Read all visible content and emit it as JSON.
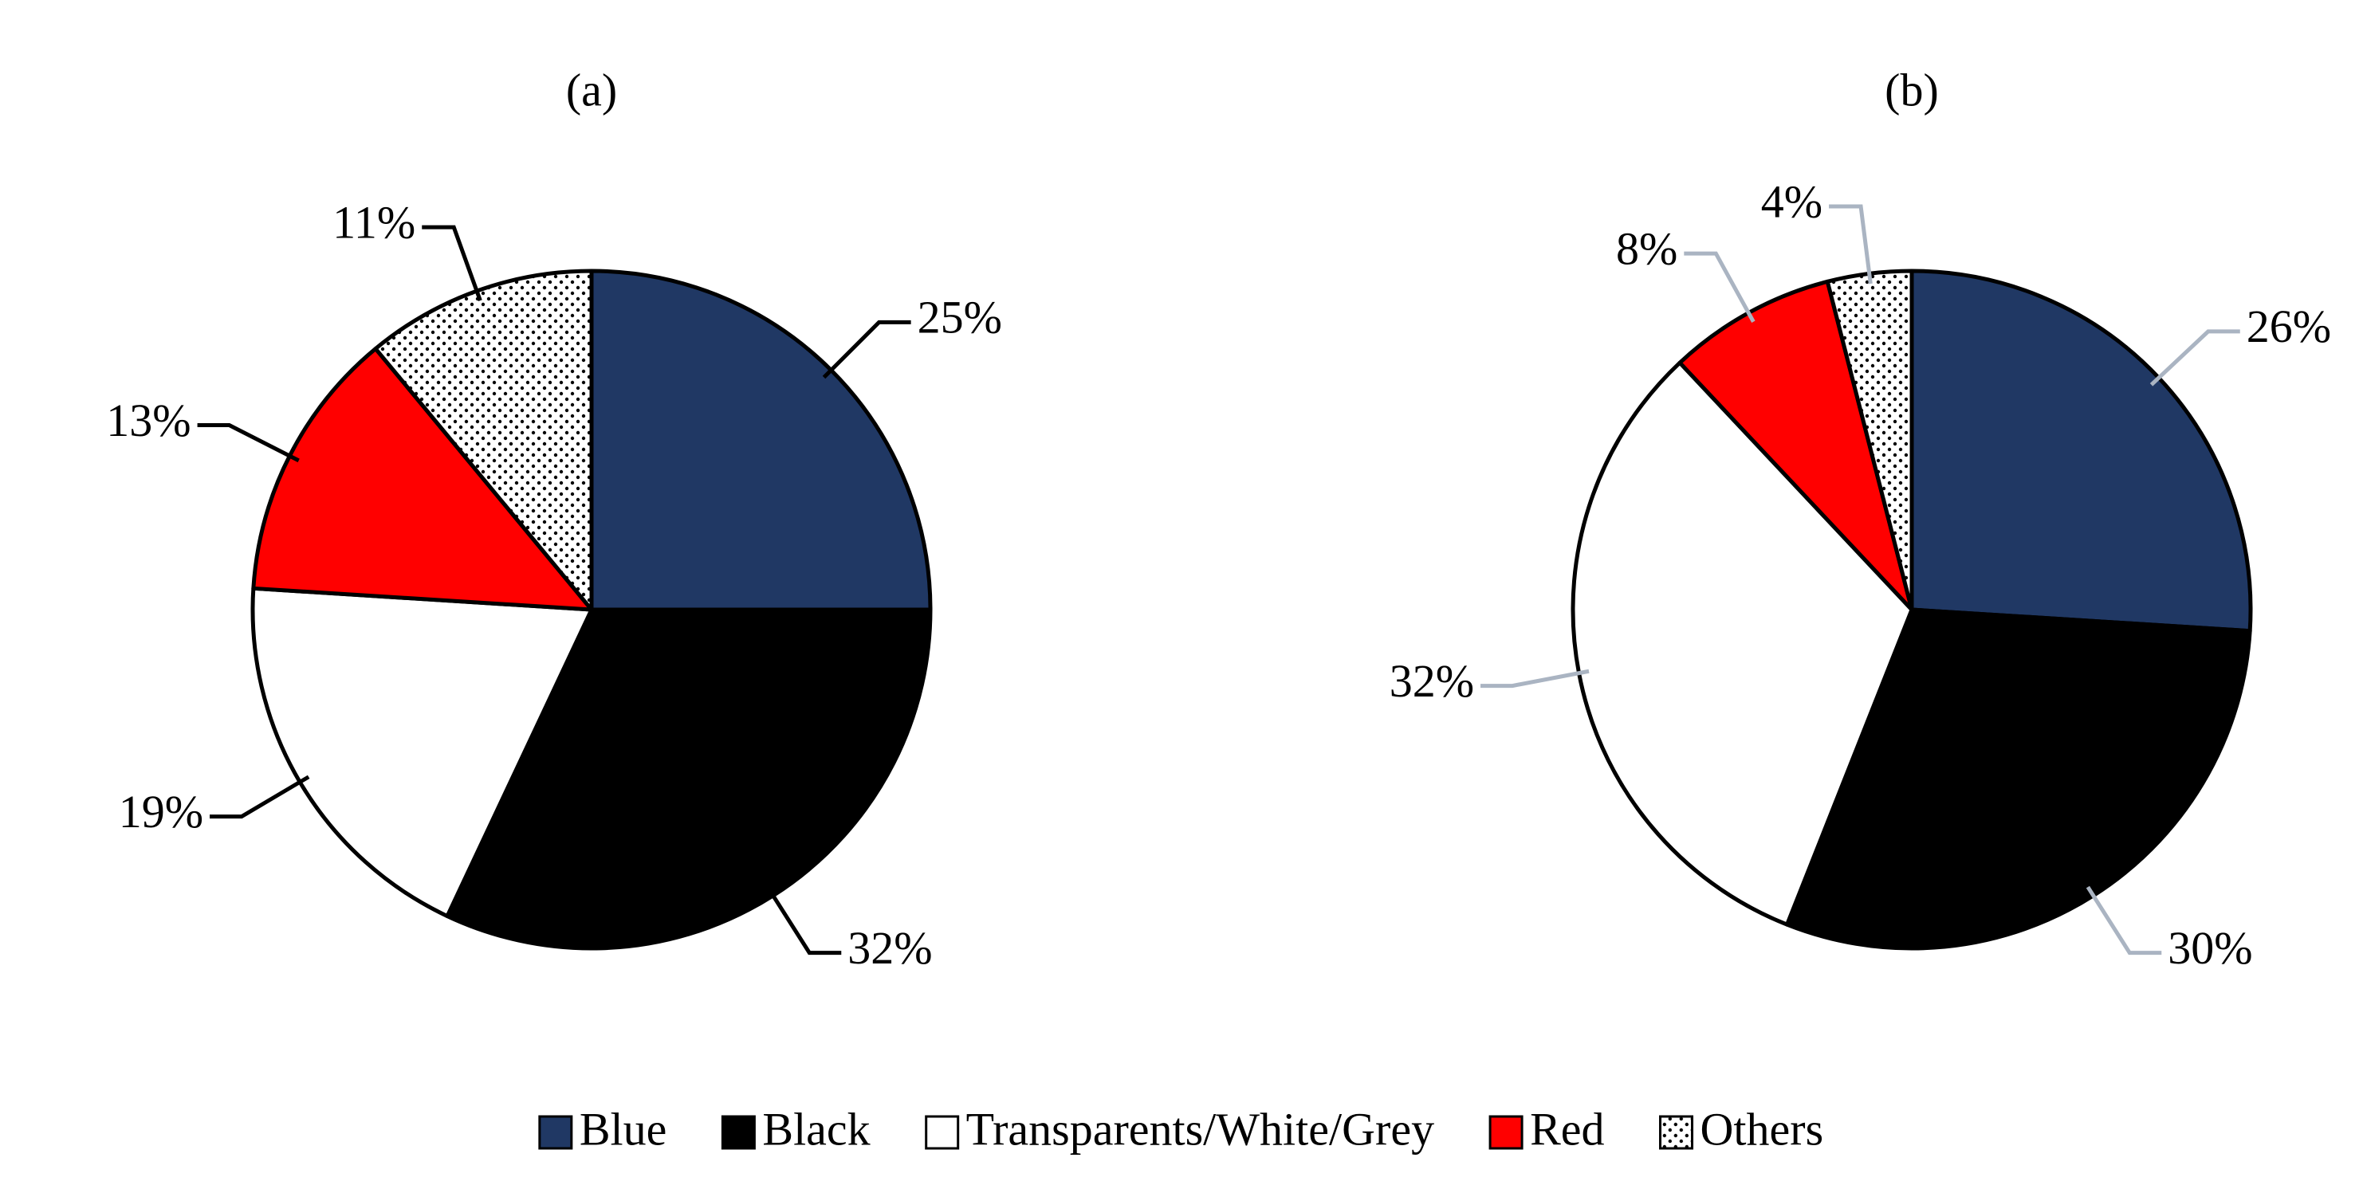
{
  "chart_data": [
    {
      "type": "pie",
      "title": "(a)",
      "categories": [
        "Blue",
        "Black",
        "Transparents/White/Grey",
        "Red",
        "Others"
      ],
      "colors": [
        "#203864",
        "#000000",
        "#ffffff",
        "#ff0000",
        "dots"
      ],
      "values": [
        25,
        32,
        19,
        13,
        11
      ],
      "value_labels": [
        "25%",
        "32%",
        "19%",
        "13%",
        "11%"
      ],
      "leader_color": "#000000"
    },
    {
      "type": "pie",
      "title": "(b)",
      "values": [
        26,
        30,
        32,
        8,
        4
      ],
      "value_labels": [
        "26%",
        "30%",
        "32%",
        "8%",
        "4%"
      ],
      "leader_color": "#aab4c2"
    }
  ]
}
